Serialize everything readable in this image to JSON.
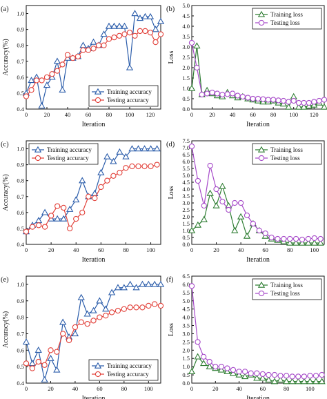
{
  "colors": {
    "training_blue": "#2a5caa",
    "testing_red": "#e2413a",
    "training_green": "#2e7d32",
    "testing_purple": "#a64ac9"
  },
  "chart_data": [
    {
      "panel": "(a)",
      "type": "line",
      "ylabel": "Accuracy(%)",
      "xlabel": "Iteration",
      "xlim": [
        0,
        130
      ],
      "ylim": [
        0.4,
        1.05
      ],
      "xticks": [
        0,
        20,
        40,
        60,
        80,
        100,
        120
      ],
      "yticks": [
        0.4,
        0.5,
        0.6,
        0.7,
        0.8,
        0.9,
        1.0
      ],
      "ytick_decimals": 1,
      "legend": "bottom-right",
      "series": [
        {
          "name": "Training accuracy",
          "color": "#2a5caa",
          "marker": "triangle",
          "x": [
            0,
            5,
            10,
            15,
            20,
            25,
            30,
            35,
            40,
            45,
            50,
            55,
            60,
            65,
            70,
            75,
            80,
            85,
            90,
            95,
            100,
            105,
            110,
            115,
            120,
            125,
            130
          ],
          "y": [
            0.5,
            0.58,
            0.6,
            0.42,
            0.55,
            0.6,
            0.7,
            0.52,
            0.72,
            0.72,
            0.73,
            0.8,
            0.78,
            0.82,
            0.8,
            0.87,
            0.92,
            0.92,
            0.92,
            0.92,
            0.66,
            1.0,
            0.97,
            0.98,
            0.98,
            0.9,
            0.95
          ]
        },
        {
          "name": "Testing accuracy",
          "color": "#e2413a",
          "marker": "circle",
          "x": [
            0,
            5,
            10,
            15,
            20,
            25,
            30,
            35,
            40,
            45,
            50,
            55,
            60,
            65,
            70,
            75,
            80,
            85,
            90,
            95,
            100,
            105,
            110,
            115,
            120,
            125,
            130
          ],
          "y": [
            0.48,
            0.52,
            0.58,
            0.58,
            0.6,
            0.62,
            0.64,
            0.68,
            0.74,
            0.72,
            0.73,
            0.77,
            0.77,
            0.78,
            0.8,
            0.8,
            0.84,
            0.85,
            0.86,
            0.87,
            0.88,
            0.86,
            0.89,
            0.89,
            0.88,
            0.82,
            0.87
          ]
        }
      ]
    },
    {
      "panel": "(b)",
      "type": "line",
      "ylabel": "Loss",
      "xlabel": "Iteration",
      "xlim": [
        0,
        130
      ],
      "ylim": [
        0,
        5
      ],
      "xticks": [
        0,
        20,
        40,
        60,
        80,
        100,
        120
      ],
      "yticks": [
        0,
        0.5,
        1.0,
        1.5,
        2.0,
        2.5,
        3.0,
        3.5,
        4.0,
        4.5,
        5.0
      ],
      "ytick_decimals": 1,
      "legend": "top-right",
      "series": [
        {
          "name": "Training loss",
          "color": "#2e7d32",
          "marker": "triangle",
          "x": [
            0,
            5,
            10,
            15,
            20,
            25,
            30,
            35,
            40,
            45,
            50,
            55,
            60,
            65,
            70,
            75,
            80,
            85,
            90,
            95,
            100,
            105,
            110,
            115,
            120,
            125,
            130
          ],
          "y": [
            1.0,
            3.05,
            0.7,
            0.9,
            0.75,
            0.65,
            0.6,
            0.8,
            0.65,
            0.55,
            0.6,
            0.5,
            0.45,
            0.4,
            0.35,
            0.35,
            0.4,
            0.3,
            0.25,
            0.1,
            0.6,
            0.1,
            0.1,
            0.15,
            0.2,
            0.3,
            0.1
          ]
        },
        {
          "name": "Testing loss",
          "color": "#a64ac9",
          "marker": "circle",
          "x": [
            0,
            5,
            10,
            15,
            20,
            25,
            30,
            35,
            40,
            45,
            50,
            55,
            60,
            65,
            70,
            75,
            80,
            85,
            90,
            95,
            100,
            105,
            110,
            115,
            120,
            125,
            130
          ],
          "y": [
            3.2,
            2.0,
            0.7,
            0.75,
            0.8,
            0.75,
            0.7,
            0.72,
            0.75,
            0.65,
            0.6,
            0.55,
            0.5,
            0.5,
            0.48,
            0.45,
            0.45,
            0.42,
            0.4,
            0.35,
            0.4,
            0.3,
            0.3,
            0.3,
            0.35,
            0.4,
            0.45
          ]
        }
      ]
    },
    {
      "panel": "(c)",
      "type": "line",
      "ylabel": "Accuracy(%)",
      "xlabel": "Iteration",
      "xlim": [
        0,
        108
      ],
      "ylim": [
        0.4,
        1.05
      ],
      "xticks": [
        0,
        20,
        40,
        60,
        80,
        100
      ],
      "yticks": [
        0.4,
        0.5,
        0.6,
        0.7,
        0.8,
        0.9,
        1.0
      ],
      "ytick_decimals": 1,
      "legend": "top-left",
      "series": [
        {
          "name": "Training accuracy",
          "color": "#2a5caa",
          "marker": "triangle",
          "x": [
            0,
            5,
            10,
            15,
            20,
            25,
            30,
            35,
            40,
            45,
            50,
            55,
            60,
            65,
            70,
            75,
            80,
            85,
            90,
            95,
            100,
            105
          ],
          "y": [
            0.48,
            0.52,
            0.55,
            0.6,
            0.56,
            0.56,
            0.56,
            0.62,
            0.68,
            0.8,
            0.7,
            0.72,
            0.85,
            0.95,
            0.92,
            0.98,
            0.95,
            1.0,
            1.0,
            1.0,
            1.0,
            1.0
          ]
        },
        {
          "name": "Testing accuracy",
          "color": "#e2413a",
          "marker": "circle",
          "x": [
            0,
            5,
            10,
            15,
            20,
            25,
            30,
            35,
            40,
            45,
            50,
            55,
            60,
            65,
            70,
            75,
            80,
            85,
            90,
            95,
            100,
            105
          ],
          "y": [
            0.48,
            0.51,
            0.52,
            0.51,
            0.58,
            0.64,
            0.63,
            0.5,
            0.56,
            0.6,
            0.7,
            0.69,
            0.76,
            0.8,
            0.83,
            0.85,
            0.88,
            0.89,
            0.89,
            0.89,
            0.89,
            0.9
          ]
        }
      ]
    },
    {
      "panel": "(d)",
      "type": "line",
      "ylabel": "Loss",
      "xlabel": "Iteration",
      "xlim": [
        0,
        108
      ],
      "ylim": [
        0,
        7.5
      ],
      "xticks": [
        0,
        20,
        40,
        60,
        80,
        100
      ],
      "yticks": [
        0,
        0.5,
        1.0,
        1.5,
        2.0,
        2.5,
        3.0,
        3.5,
        4.0,
        4.5,
        5.0,
        5.5,
        6.0,
        6.5,
        7.0,
        7.5
      ],
      "ytick_decimals": 1,
      "legend": "top-right",
      "series": [
        {
          "name": "Training loss",
          "color": "#2e7d32",
          "marker": "triangle",
          "x": [
            0,
            5,
            10,
            15,
            20,
            25,
            30,
            35,
            40,
            45,
            50,
            55,
            60,
            65,
            70,
            75,
            80,
            85,
            90,
            95,
            100,
            105
          ],
          "y": [
            1.0,
            1.4,
            1.8,
            3.7,
            2.8,
            4.2,
            2.8,
            1.0,
            2.0,
            0.6,
            1.5,
            1.0,
            0.6,
            0.4,
            0.3,
            0.2,
            0.1,
            0.1,
            0.1,
            0.1,
            0.1,
            0.1
          ]
        },
        {
          "name": "Testing loss",
          "color": "#a64ac9",
          "marker": "circle",
          "x": [
            0,
            5,
            10,
            15,
            20,
            25,
            30,
            35,
            40,
            45,
            50,
            55,
            60,
            65,
            70,
            75,
            80,
            85,
            90,
            95,
            100,
            105
          ],
          "y": [
            7.1,
            4.6,
            2.8,
            5.7,
            4.0,
            3.1,
            2.5,
            3.0,
            3.0,
            2.1,
            1.5,
            1.0,
            0.8,
            0.5,
            0.4,
            0.4,
            0.4,
            0.4,
            0.35,
            0.4,
            0.45,
            0.4
          ]
        }
      ]
    },
    {
      "panel": "(e)",
      "type": "line",
      "ylabel": "Accuracy(%)",
      "xlabel": "Iteration",
      "xlim": [
        0,
        110
      ],
      "ylim": [
        0.4,
        1.05
      ],
      "xticks": [
        0,
        20,
        40,
        60,
        80,
        100
      ],
      "yticks": [
        0.4,
        0.5,
        0.6,
        0.7,
        0.8,
        0.9,
        1.0
      ],
      "ytick_decimals": 1,
      "legend": "bottom-right",
      "series": [
        {
          "name": "Training accuracy",
          "color": "#2a5caa",
          "marker": "triangle",
          "x": [
            0,
            5,
            10,
            15,
            20,
            25,
            30,
            35,
            40,
            45,
            50,
            55,
            60,
            65,
            70,
            75,
            80,
            85,
            90,
            95,
            100,
            105,
            110
          ],
          "y": [
            0.65,
            0.52,
            0.6,
            0.42,
            0.55,
            0.48,
            0.77,
            0.68,
            0.7,
            0.92,
            0.82,
            0.84,
            0.9,
            0.85,
            0.95,
            0.98,
            0.98,
            1.0,
            0.98,
            1.0,
            1.0,
            1.0,
            1.0
          ]
        },
        {
          "name": "Testing accuracy",
          "color": "#e2413a",
          "marker": "circle",
          "x": [
            0,
            5,
            10,
            15,
            20,
            25,
            30,
            35,
            40,
            45,
            50,
            55,
            60,
            65,
            70,
            75,
            80,
            85,
            90,
            95,
            100,
            105,
            110
          ],
          "y": [
            0.52,
            0.49,
            0.53,
            0.51,
            0.6,
            0.59,
            0.7,
            0.66,
            0.74,
            0.77,
            0.76,
            0.78,
            0.8,
            0.81,
            0.83,
            0.84,
            0.85,
            0.86,
            0.86,
            0.86,
            0.87,
            0.88,
            0.87
          ]
        }
      ]
    },
    {
      "panel": "(f)",
      "type": "line",
      "ylabel": "Loss",
      "xlabel": "Iteration",
      "xlim": [
        0,
        112
      ],
      "ylim": [
        0,
        6.5
      ],
      "xticks": [
        0,
        20,
        40,
        60,
        80,
        100
      ],
      "yticks": [
        0,
        0.5,
        1.0,
        1.5,
        2.0,
        2.5,
        3.0,
        3.5,
        4.0,
        4.5,
        5.0,
        5.5,
        6.0,
        6.5
      ],
      "ytick_decimals": 1,
      "legend": "top-right",
      "series": [
        {
          "name": "Training loss",
          "color": "#2e7d32",
          "marker": "triangle",
          "x": [
            0,
            5,
            10,
            15,
            20,
            25,
            30,
            35,
            40,
            45,
            50,
            55,
            60,
            65,
            70,
            75,
            80,
            85,
            90,
            95,
            100,
            105,
            110
          ],
          "y": [
            0.7,
            1.6,
            1.2,
            1.0,
            0.9,
            0.8,
            0.7,
            0.6,
            0.5,
            0.4,
            0.5,
            0.3,
            0.3,
            0.2,
            0.1,
            0.2,
            0.1,
            0.1,
            0.1,
            0.1,
            0.1,
            0.1,
            0.1
          ]
        },
        {
          "name": "Testing loss",
          "color": "#a64ac9",
          "marker": "circle",
          "x": [
            0,
            5,
            10,
            15,
            20,
            25,
            30,
            35,
            40,
            45,
            50,
            55,
            60,
            65,
            70,
            75,
            80,
            85,
            90,
            95,
            100,
            105,
            110
          ],
          "y": [
            5.9,
            2.5,
            1.6,
            1.3,
            1.0,
            1.0,
            0.9,
            0.8,
            0.7,
            0.7,
            0.6,
            0.6,
            0.55,
            0.5,
            0.5,
            0.45,
            0.45,
            0.4,
            0.4,
            0.4,
            0.45,
            0.45,
            0.5
          ]
        }
      ]
    }
  ]
}
